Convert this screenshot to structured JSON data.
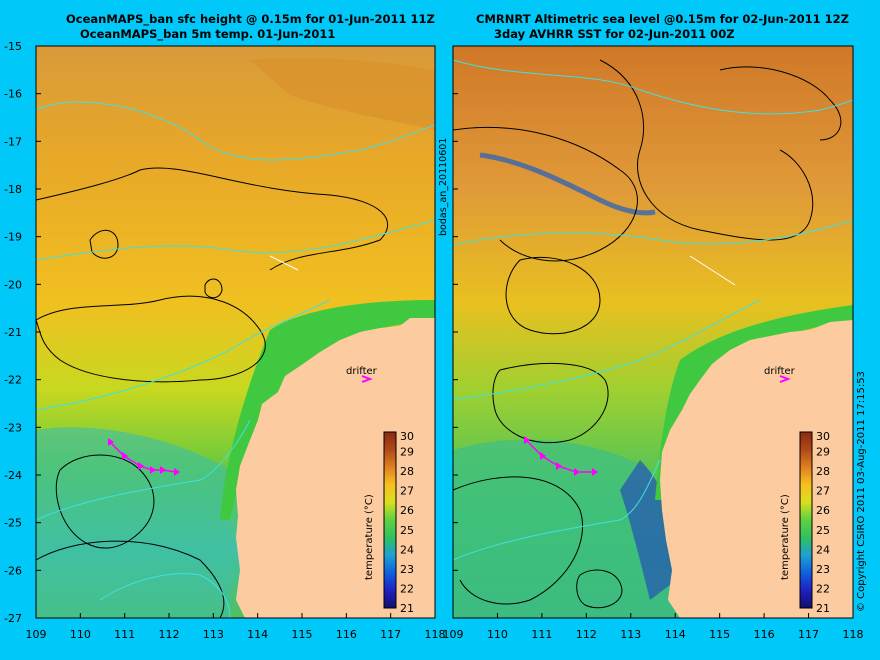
{
  "left_panel": {
    "title_line1": "OceanMAPS_ban sfc height @ 0.15m for 01-Jun-2011 11Z",
    "title_line2": "OceanMAPS_ban 5m temp. 01-Jun-2011",
    "drifter_label": "drifter",
    "colorbar_label": "temperature (°C)"
  },
  "right_panel": {
    "title_line1": "CMRNRT Altimetric sea level  @0.15m  for 02-Jun-2011 12Z",
    "title_line2": "3day AVHRR SST for 02-Jun-2011 00Z",
    "drifter_label": "drifter",
    "colorbar_label": "temperature (°C)"
  },
  "side_label": "bodas_an_20110601",
  "copyright": "© Copyright CSIRO 2011   03-Aug-2011 17:15:53",
  "axes": {
    "x_ticks": [
      "109",
      "110",
      "111",
      "112",
      "113",
      "114",
      "115",
      "116",
      "117",
      "118"
    ],
    "y_ticks": [
      "-15",
      "-16",
      "-17",
      "-18",
      "-19",
      "-20",
      "-21",
      "-22",
      "-23",
      "-24",
      "-25",
      "-26",
      "-27"
    ]
  },
  "colorbar_ticks": [
    "30",
    "29",
    "28",
    "27",
    "26",
    "25",
    "24",
    "23",
    "22",
    "21"
  ],
  "colors": {
    "background": "#00c8f8",
    "land": "#fccca0",
    "warm": "#e0a030",
    "cool": "#30c060",
    "drifter": "#ff00ff",
    "contour_cyan": "#40e0e0",
    "contour_black": "#000000"
  }
}
